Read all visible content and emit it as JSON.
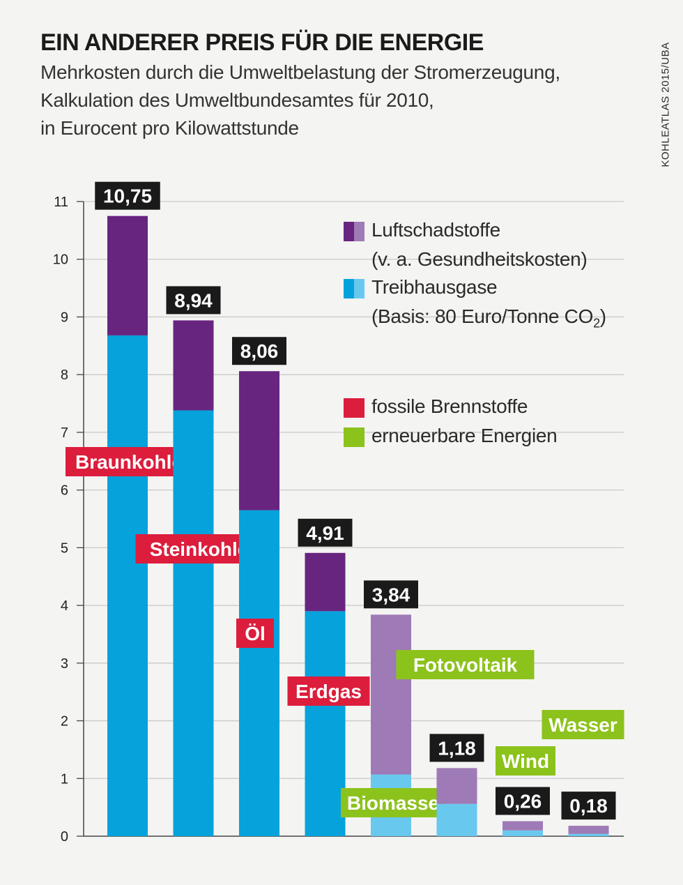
{
  "header": {
    "title": "EIN ANDERER PREIS FÜR DIE ENERGIE",
    "subtitle_lines": [
      "Mehrkosten durch die Umweltbelastung der Stromerzeugung,",
      "Kalkulation des Umweltbundesamtes für 2010,",
      "in Eurocent pro Kilowattstunde"
    ],
    "source": "KOHLEATLAS 2015/UBA"
  },
  "legend": {
    "luft_line1": "Luftschadstoffe",
    "luft_line2": "(v. a. Gesundheitskosten)",
    "treib_line1": "Treibhausgase",
    "treib_line2_prefix": "(Basis: 80 Euro/Tonne CO",
    "treib_line2_sub": "2",
    "treib_line2_suffix": ")",
    "fossil": "fossile Brennstoffe",
    "renewable": "erneuerbare Energien"
  },
  "colors": {
    "purple_dark": "#67257f",
    "purple_light": "#9e7ab6",
    "blue_dark": "#06a2dc",
    "blue_light": "#69c8ee",
    "fossil_red": "#dc1d3c",
    "renewable_green": "#8cc21c",
    "total_label_bg": "#1a1a1a"
  },
  "chart_data": {
    "type": "bar",
    "stacked": true,
    "ylim": [
      0,
      11
    ],
    "yticks": [
      "0",
      "1",
      "2",
      "3",
      "4",
      "5",
      "6",
      "7",
      "8",
      "9",
      "10",
      "11"
    ],
    "grid": true,
    "legend_position": "top-right",
    "categories": [
      "Braunkohle",
      "Steinkohle",
      "Öl",
      "Erdgas",
      "Biomasse",
      "Fotovoltaik",
      "Wind",
      "Wasser"
    ],
    "groups": [
      "fossil",
      "fossil",
      "fossil",
      "fossil",
      "renewable",
      "renewable",
      "renewable",
      "renewable"
    ],
    "series": [
      {
        "name": "Treibhausgase",
        "values": [
          8.68,
          7.38,
          5.65,
          3.9,
          1.07,
          0.56,
          0.1,
          0.04
        ]
      },
      {
        "name": "Luftschadstoffe",
        "values": [
          2.07,
          1.56,
          2.41,
          1.01,
          2.77,
          0.62,
          0.16,
          0.14
        ]
      }
    ],
    "totals": [
      "10,75",
      "8,94",
      "8,06",
      "4,91",
      "3,84",
      "1,18",
      "0,26",
      "0,18"
    ]
  }
}
